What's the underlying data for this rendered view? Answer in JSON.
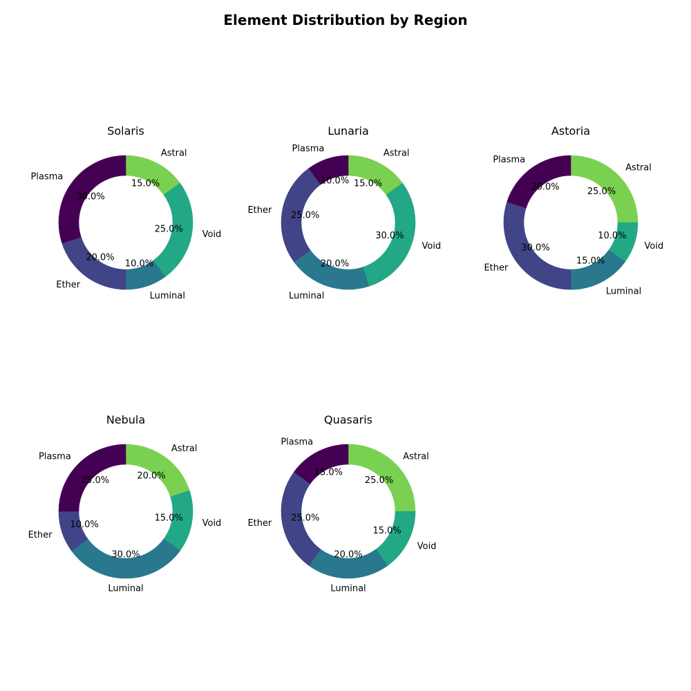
{
  "figure": {
    "title": "Element Distribution by Region"
  },
  "chart_data": [
    {
      "type": "pie",
      "variant": "donut",
      "title": "Solaris",
      "categories": [
        "Astral",
        "Void",
        "Luminal",
        "Ether",
        "Plasma"
      ],
      "values": [
        15.0,
        25.0,
        10.0,
        20.0,
        30.0
      ],
      "colors": [
        "#7ad151",
        "#22a884",
        "#2a788e",
        "#414487",
        "#440154"
      ],
      "start": "top",
      "direction": "clockwise"
    },
    {
      "type": "pie",
      "variant": "donut",
      "title": "Lunaria",
      "categories": [
        "Astral",
        "Void",
        "Luminal",
        "Ether",
        "Plasma"
      ],
      "values": [
        15.0,
        30.0,
        20.0,
        25.0,
        10.0
      ],
      "colors": [
        "#7ad151",
        "#22a884",
        "#2a788e",
        "#414487",
        "#440154"
      ],
      "start": "top",
      "direction": "clockwise"
    },
    {
      "type": "pie",
      "variant": "donut",
      "title": "Astoria",
      "categories": [
        "Astral",
        "Void",
        "Luminal",
        "Ether",
        "Plasma"
      ],
      "values": [
        25.0,
        10.0,
        15.0,
        30.0,
        20.0
      ],
      "colors": [
        "#7ad151",
        "#22a884",
        "#2a788e",
        "#414487",
        "#440154"
      ],
      "start": "top",
      "direction": "clockwise"
    },
    {
      "type": "pie",
      "variant": "donut",
      "title": "Nebula",
      "categories": [
        "Astral",
        "Void",
        "Luminal",
        "Ether",
        "Plasma"
      ],
      "values": [
        20.0,
        15.0,
        30.0,
        10.0,
        25.0
      ],
      "colors": [
        "#7ad151",
        "#22a884",
        "#2a788e",
        "#414487",
        "#440154"
      ],
      "start": "top",
      "direction": "clockwise"
    },
    {
      "type": "pie",
      "variant": "donut",
      "title": "Quasaris",
      "categories": [
        "Astral",
        "Void",
        "Luminal",
        "Ether",
        "Plasma"
      ],
      "values": [
        25.0,
        15.0,
        20.0,
        25.0,
        15.0
      ],
      "colors": [
        "#7ad151",
        "#22a884",
        "#2a788e",
        "#414487",
        "#440154"
      ],
      "start": "top",
      "direction": "clockwise"
    }
  ]
}
